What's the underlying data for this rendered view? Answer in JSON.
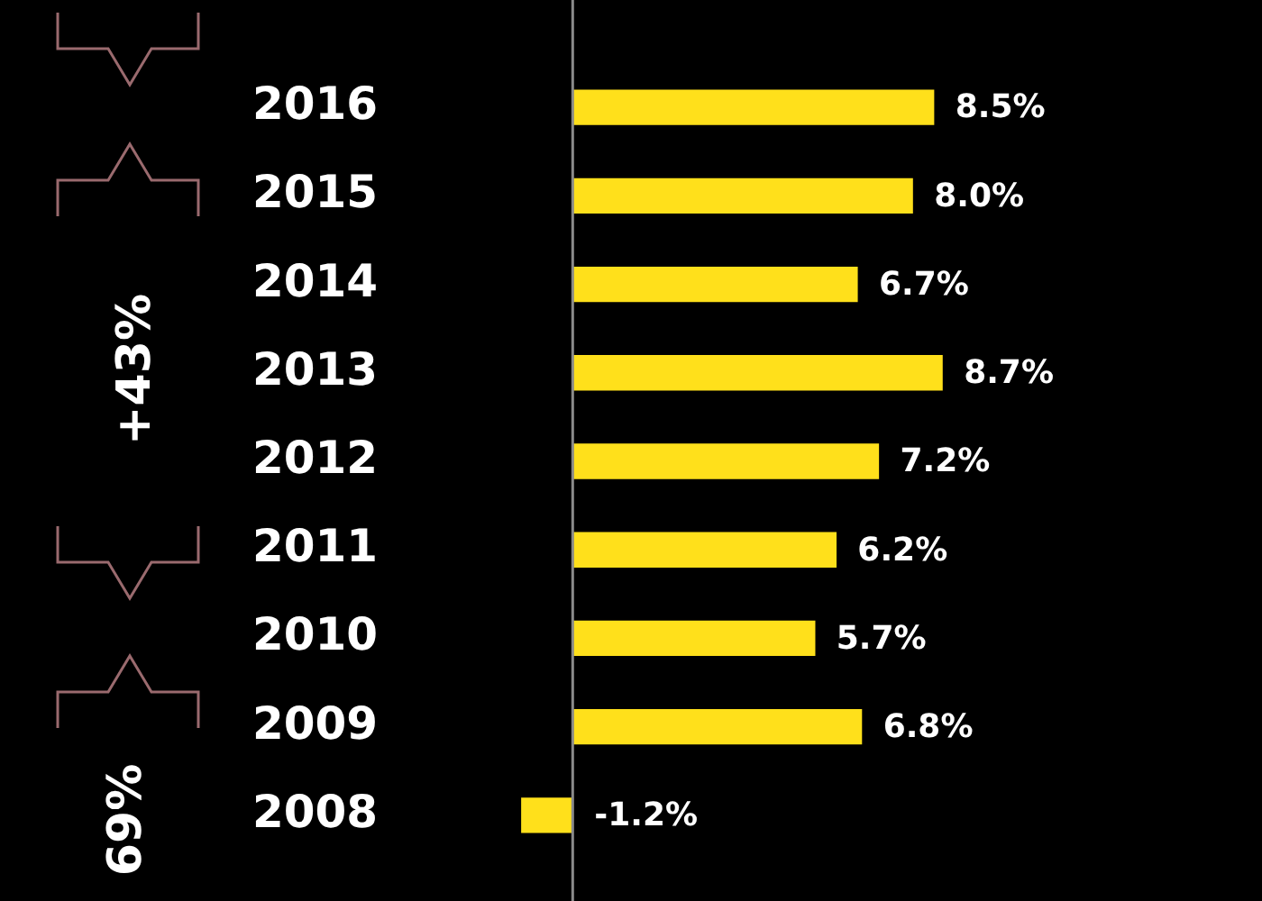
{
  "chart_data": {
    "type": "bar",
    "orientation": "horizontal",
    "categories": [
      "2016",
      "2015",
      "2014",
      "2013",
      "2012",
      "2011",
      "2010",
      "2009",
      "2008"
    ],
    "values": [
      8.5,
      8.0,
      6.7,
      8.7,
      7.2,
      6.2,
      5.7,
      6.8,
      -1.2
    ],
    "value_labels": [
      "8.5%",
      "8.0%",
      "6.7%",
      "8.7%",
      "7.2%",
      "6.2%",
      "5.7%",
      "6.8%",
      "-1.2%"
    ],
    "color": "#ffe01b",
    "tick_labels": "y",
    "legend": false,
    "ref_lines": [
      {
        "axis": "x",
        "value": 0,
        "color": "#8a8a8a"
      }
    ],
    "annotations": [
      "+43%",
      "69%"
    ]
  }
}
